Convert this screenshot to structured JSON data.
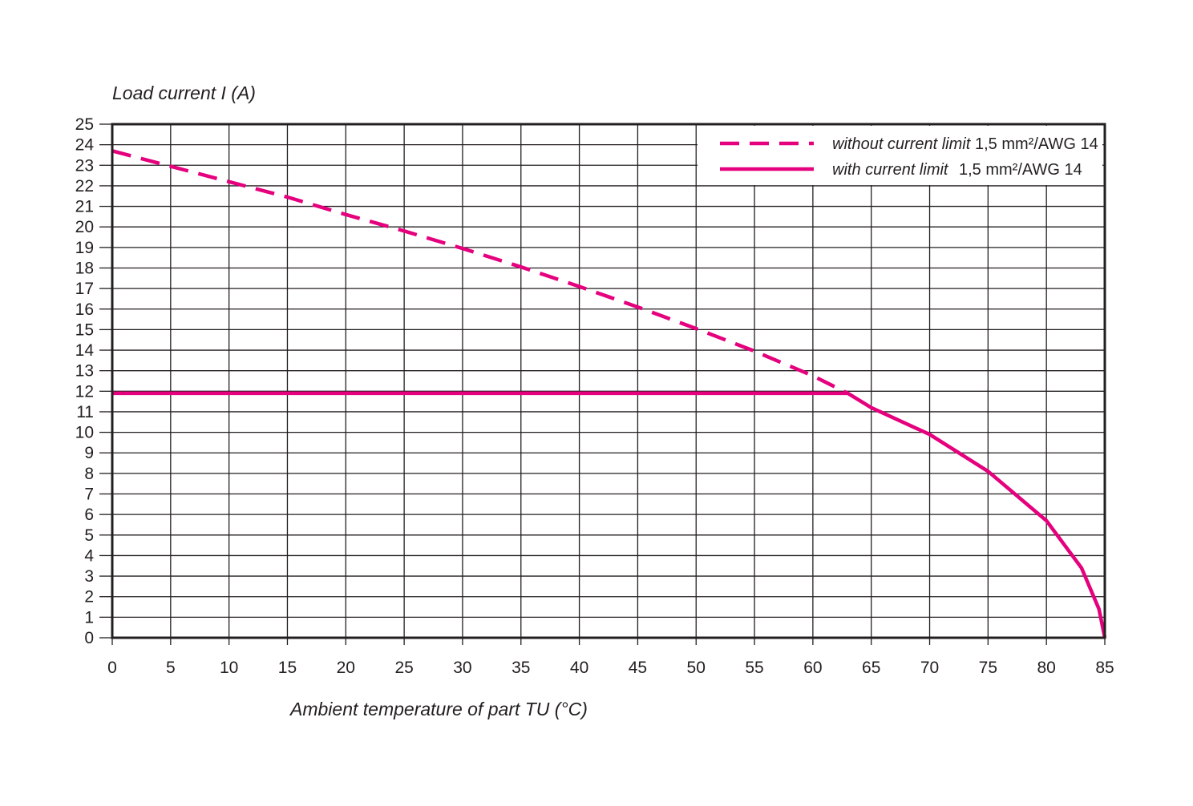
{
  "chart_data": {
    "type": "line",
    "title": "",
    "xlabel": "Ambient temperature of part TU (°C)",
    "ylabel": "Load current I (A)",
    "xlim": [
      0,
      85
    ],
    "ylim": [
      0,
      25
    ],
    "x_ticks": [
      0,
      5,
      10,
      15,
      20,
      25,
      30,
      35,
      40,
      45,
      50,
      55,
      60,
      65,
      70,
      75,
      80,
      85
    ],
    "y_ticks": [
      0,
      1,
      2,
      3,
      4,
      5,
      6,
      7,
      8,
      9,
      10,
      11,
      12,
      13,
      14,
      15,
      16,
      17,
      18,
      19,
      20,
      21,
      22,
      23,
      24,
      25
    ],
    "grid": true,
    "legend_position": "top-right",
    "series": [
      {
        "name": "without current limit",
        "spec": "1,5 mm²/AWG 14",
        "style": "dashed",
        "x": [
          0,
          5,
          10,
          15,
          20,
          25,
          30,
          35,
          40,
          45,
          50,
          55,
          60,
          63
        ],
        "y": [
          23.7,
          22.95,
          22.2,
          21.45,
          20.6,
          19.8,
          18.95,
          18.05,
          17.1,
          16.1,
          15.05,
          13.95,
          12.75,
          11.9
        ]
      },
      {
        "name": "with current limit",
        "spec": "1,5 mm²/AWG 14",
        "style": "solid",
        "x": [
          0,
          63,
          65,
          70,
          75,
          80,
          83,
          84.5,
          85
        ],
        "y": [
          11.9,
          11.9,
          11.2,
          9.9,
          8.1,
          5.7,
          3.4,
          1.4,
          0
        ]
      }
    ]
  },
  "colors": {
    "series": "#e5007d",
    "grid": "#231f20",
    "text": "#231f20",
    "background": "#ffffff"
  }
}
